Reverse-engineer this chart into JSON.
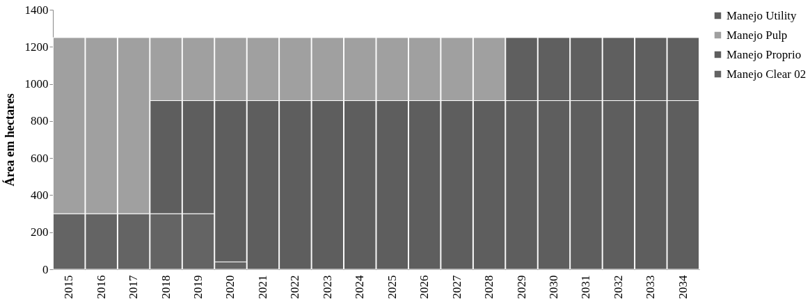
{
  "chart_data": {
    "type": "bar",
    "stacked": true,
    "ylabel": "Área em hectares",
    "ylim": [
      0,
      1400
    ],
    "yticks": [
      0,
      200,
      400,
      600,
      800,
      1000,
      1200,
      1400
    ],
    "grid": false,
    "legend": "right",
    "categories": [
      "2015",
      "2016",
      "2017",
      "2018",
      "2019",
      "2020",
      "2021",
      "2022",
      "2023",
      "2024",
      "2025",
      "2026",
      "2027",
      "2028",
      "2029",
      "2030",
      "2031",
      "2032",
      "2033",
      "2034"
    ],
    "series": [
      {
        "name": "Manejo Clear 02",
        "color": "#646464",
        "values": [
          300,
          300,
          300,
          300,
          300,
          40,
          null,
          null,
          null,
          null,
          null,
          null,
          null,
          null,
          null,
          null,
          null,
          null,
          null,
          null
        ]
      },
      {
        "name": "Manejo Proprio",
        "color": "#5e5e5e",
        "values": [
          null,
          null,
          null,
          610,
          610,
          870,
          910,
          910,
          910,
          910,
          910,
          910,
          910,
          910,
          910,
          910,
          910,
          910,
          910,
          910
        ]
      },
      {
        "name": "Manejo Pulp",
        "color": "#a0a0a0",
        "values": [
          950,
          950,
          950,
          340,
          340,
          340,
          340,
          340,
          340,
          340,
          340,
          340,
          340,
          340,
          null,
          null,
          null,
          null,
          null,
          null
        ]
      },
      {
        "name": "Manejo Utility",
        "color": "#5f5f5f",
        "values": [
          null,
          null,
          null,
          null,
          null,
          null,
          null,
          null,
          null,
          null,
          null,
          null,
          null,
          null,
          340,
          340,
          340,
          340,
          340,
          340
        ]
      }
    ]
  }
}
